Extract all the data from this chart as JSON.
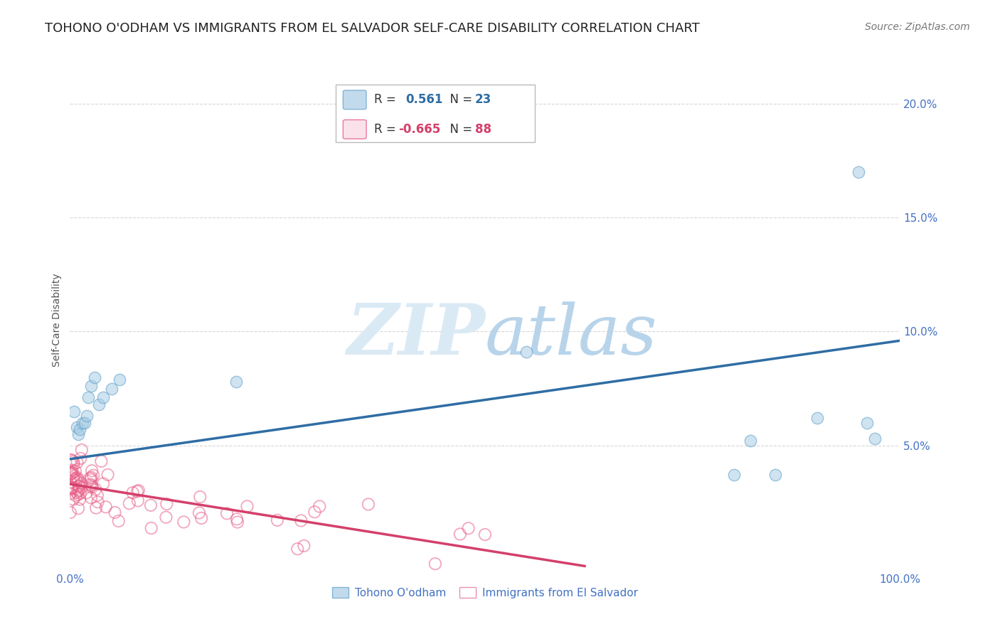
{
  "title": "TOHONO O'ODHAM VS IMMIGRANTS FROM EL SALVADOR SELF-CARE DISABILITY CORRELATION CHART",
  "source": "Source: ZipAtlas.com",
  "ylabel": "Self-Care Disability",
  "xlim": [
    0,
    1.0
  ],
  "ylim": [
    -0.005,
    0.215
  ],
  "xticks": [
    0.0,
    0.25,
    0.5,
    0.75,
    1.0
  ],
  "xtick_labels": [
    "0.0%",
    "",
    "",
    "",
    "100.0%"
  ],
  "yticks": [
    0.05,
    0.1,
    0.15,
    0.2
  ],
  "ytick_labels": [
    "5.0%",
    "10.0%",
    "15.0%",
    "20.0%"
  ],
  "blue_R": 0.561,
  "blue_N": 23,
  "pink_R": -0.665,
  "pink_N": 88,
  "blue_color": "#a8cce4",
  "pink_color": "#f4a0bb",
  "blue_marker_edge": "#5b9eca",
  "pink_marker_edge": "#e8608a",
  "blue_line_color": "#2e6da4",
  "pink_line_color": "#d4406a",
  "watermark_zip_color": "#daeaf5",
  "watermark_atlas_color": "#b8d4ea",
  "background_color": "#ffffff",
  "grid_color": "#cccccc",
  "tick_color": "#4472c4",
  "title_fontsize": 13,
  "source_fontsize": 10,
  "axis_label_fontsize": 10,
  "tick_fontsize": 11,
  "legend_fontsize": 12,
  "blue_scatter_x": [
    0.005,
    0.008,
    0.01,
    0.012,
    0.015,
    0.018,
    0.02,
    0.022,
    0.025,
    0.03,
    0.035,
    0.04,
    0.05,
    0.06,
    0.2,
    0.55,
    0.8,
    0.82,
    0.85,
    0.9,
    0.95,
    0.96,
    0.97
  ],
  "blue_scatter_y": [
    0.065,
    0.058,
    0.055,
    0.057,
    0.06,
    0.06,
    0.063,
    0.071,
    0.076,
    0.08,
    0.068,
    0.071,
    0.075,
    0.079,
    0.078,
    0.091,
    0.037,
    0.052,
    0.037,
    0.062,
    0.17,
    0.06,
    0.053
  ],
  "blue_line_x0": 0.0,
  "blue_line_y0": 0.044,
  "blue_line_x1": 1.0,
  "blue_line_y1": 0.096,
  "pink_line_x0": 0.0,
  "pink_line_y0": 0.033,
  "pink_line_x1": 0.62,
  "pink_line_y1": -0.003
}
